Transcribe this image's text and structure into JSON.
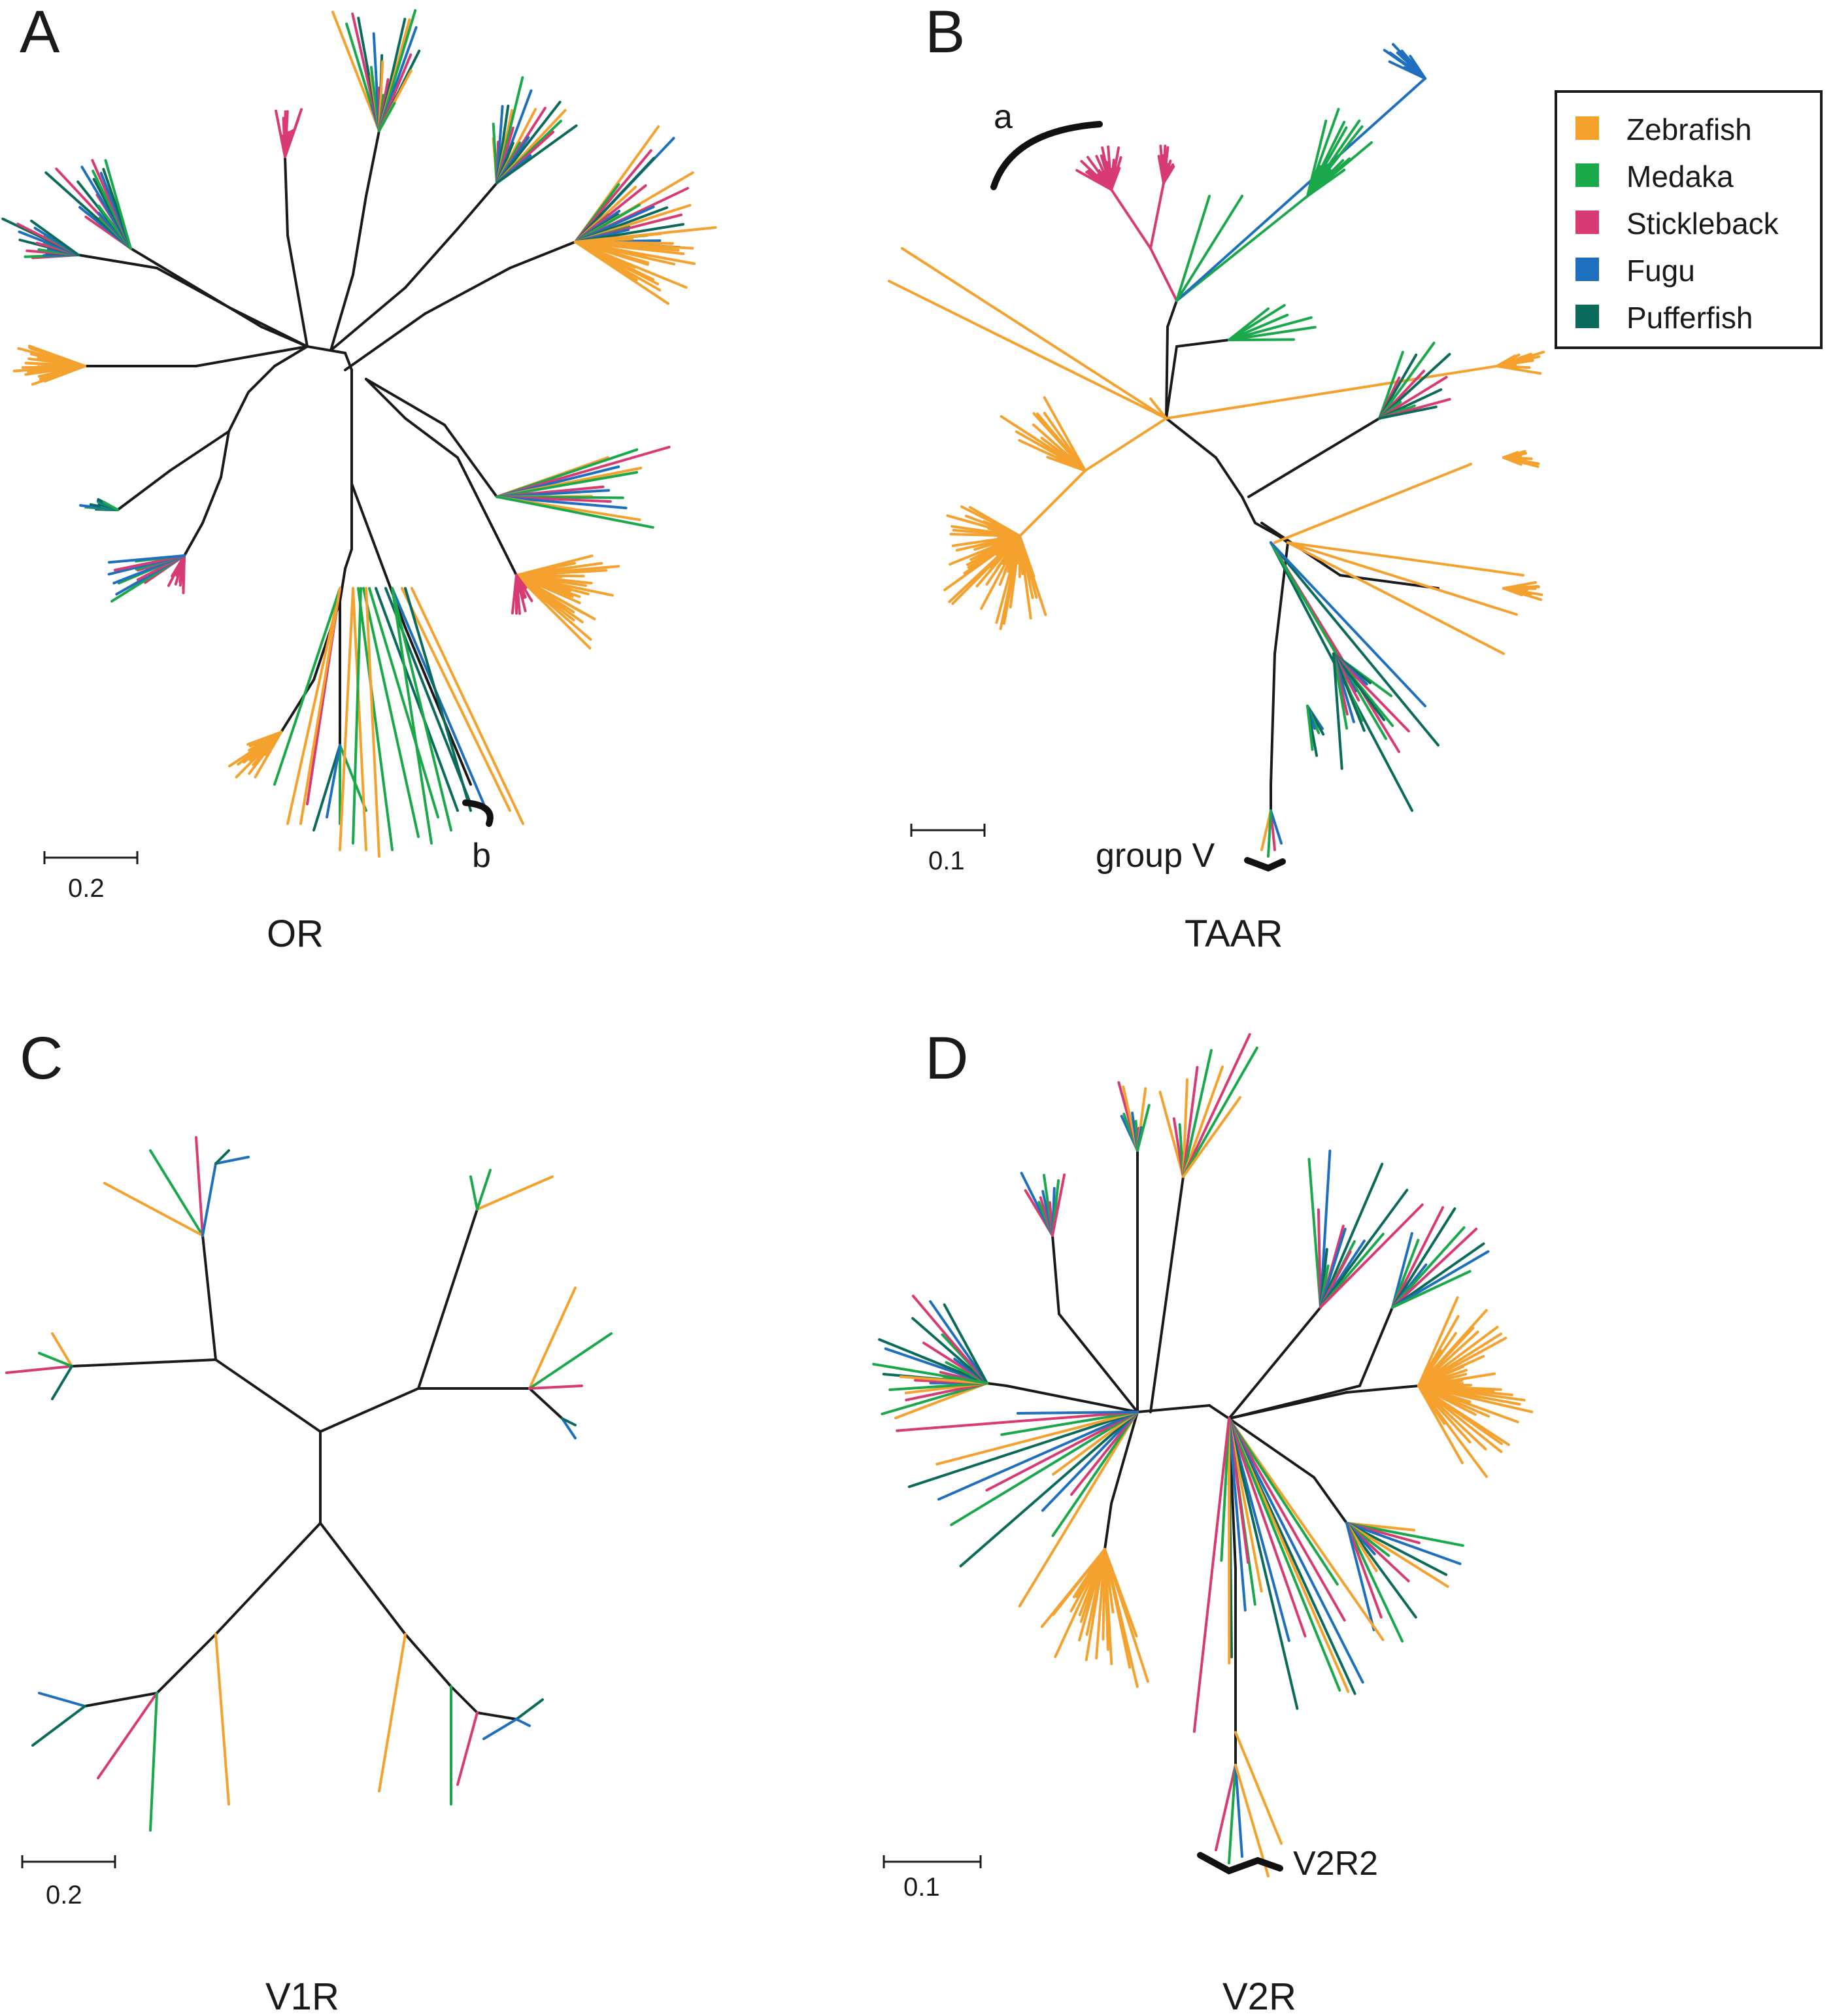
{
  "colors": {
    "Zebrafish": "#f4a12e",
    "Medaka": "#1aa84a",
    "Stickleback": "#d83b73",
    "Fugu": "#1f6fbf",
    "Pufferfish": "#0b6b5a",
    "trunk": "#1a1a1a"
  },
  "legend": {
    "items": [
      {
        "label": "Zebrafish",
        "species": "Zebrafish"
      },
      {
        "label": "Medaka",
        "species": "Medaka"
      },
      {
        "label": "Stickleback",
        "species": "Stickleback"
      },
      {
        "label": "Fugu",
        "species": "Fugu"
      },
      {
        "label": "Pufferfish",
        "species": "Pufferfish"
      }
    ]
  },
  "panels": {
    "A": {
      "letter": "A",
      "title": "OR",
      "scale": "0.2",
      "annotation": "b"
    },
    "B": {
      "letter": "B",
      "title": "TAAR",
      "scale": "0.1",
      "annotation_a": "a",
      "annotation_group": "group V"
    },
    "C": {
      "letter": "C",
      "title": "V1R",
      "scale": "0.2"
    },
    "D": {
      "letter": "D",
      "title": "V2R",
      "scale": "0.1",
      "annotation": "V2R2"
    }
  }
}
